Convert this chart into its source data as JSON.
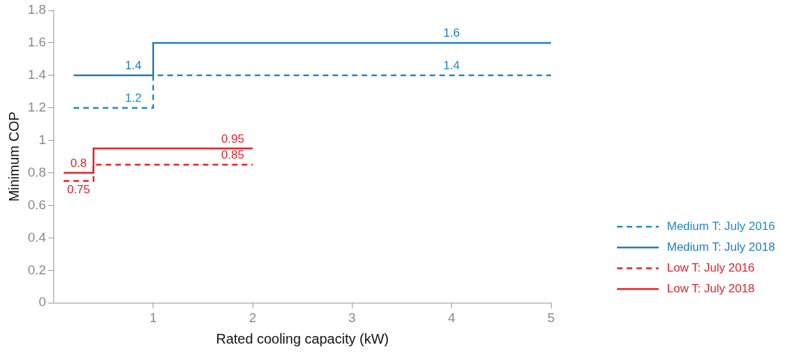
{
  "chart_data": {
    "type": "step",
    "xlabel": "Rated cooling capacity (kW)",
    "ylabel": "Minimum COP",
    "xlim": [
      0,
      5
    ],
    "xticks": [
      1,
      2,
      3,
      4,
      5
    ],
    "ylim": [
      0,
      1.8
    ],
    "yticks": [
      0,
      0.2,
      0.4,
      0.6,
      0.8,
      1,
      1.2,
      1.4,
      1.6,
      1.8
    ],
    "grid": false,
    "legend": "right",
    "marker": "none",
    "series": [
      {
        "name": "Medium T: July 2016",
        "color": "#1f8ad0",
        "line_style": "dashed",
        "x": [
          0.2,
          1,
          5
        ],
        "values": [
          1.2,
          1.4,
          1.4
        ]
      },
      {
        "name": "Medium T: July 2018",
        "color": "#1f7cc8",
        "line_style": "solid",
        "x": [
          0.2,
          1,
          5
        ],
        "values": [
          1.4,
          1.6,
          1.6
        ]
      },
      {
        "name": "Low T: July 2016",
        "color": "#e8202a",
        "line_style": "dashed",
        "x": [
          0.1,
          0.4,
          2
        ],
        "values": [
          0.75,
          0.85,
          0.85
        ]
      },
      {
        "name": "Low T: July 2018",
        "color": "#e8202a",
        "line_style": "solid",
        "x": [
          0.1,
          0.4,
          2
        ],
        "values": [
          0.8,
          0.95,
          0.95
        ]
      }
    ],
    "annotations": [
      {
        "text": "1.6",
        "x": 4,
        "y": 1.6
      },
      {
        "text": "1.4",
        "x": 4,
        "y": 1.4
      },
      {
        "text": "1.4",
        "x": 0.8,
        "y": 1.4
      },
      {
        "text": "1.2",
        "x": 0.8,
        "y": 1.2
      },
      {
        "text": "0.95",
        "x": 1.8,
        "y": 0.95
      },
      {
        "text": "0.85",
        "x": 1.8,
        "y": 0.85
      },
      {
        "text": "0.8",
        "x": 0.25,
        "y": 0.8
      },
      {
        "text": "0.75",
        "x": 0.25,
        "y": 0.75
      }
    ]
  }
}
